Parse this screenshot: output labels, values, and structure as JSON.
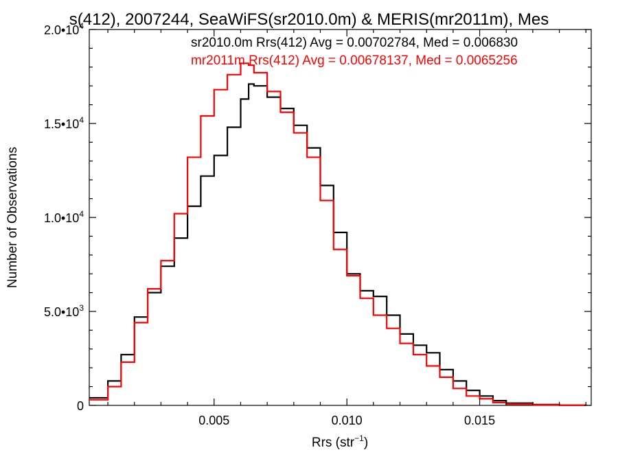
{
  "chart_data": {
    "type": "line",
    "title": "s(412), 2007244, SeaWiFS(sr2010.0m) & MERIS(mr2011m), Mes",
    "xlabel_main": "Rrs (str",
    "xlabel_sup": "−1",
    "xlabel_close": ")",
    "ylabel": "Number of Observations",
    "xlim": [
      0.0003,
      0.0192
    ],
    "ylim": [
      0,
      20000
    ],
    "x_ticks": [
      {
        "value": 0.005,
        "label": "0.005"
      },
      {
        "value": 0.01,
        "label": "0.010"
      },
      {
        "value": 0.015,
        "label": "0.015"
      }
    ],
    "y_ticks": [
      {
        "value": 0,
        "base": "0",
        "exp": ""
      },
      {
        "value": 5000,
        "base": "5.0•10",
        "exp": "3"
      },
      {
        "value": 10000,
        "base": "1.0•10",
        "exp": "4"
      },
      {
        "value": 15000,
        "base": "1.5•10",
        "exp": "4"
      },
      {
        "value": 20000,
        "base": "2.0•10",
        "exp": "4"
      }
    ],
    "grid": false,
    "legend_position": "top-right",
    "series": [
      {
        "name": "sr2010.0m Rrs(412) Avg = 0.00702784, Med = 0.006830",
        "color": "#000000",
        "x": [
          0.0003,
          0.001,
          0.0015,
          0.002,
          0.0025,
          0.003,
          0.0035,
          0.004,
          0.0045,
          0.005,
          0.0055,
          0.006,
          0.0063,
          0.0065,
          0.007,
          0.0075,
          0.008,
          0.0085,
          0.009,
          0.0095,
          0.01,
          0.0105,
          0.011,
          0.0115,
          0.012,
          0.0125,
          0.013,
          0.0135,
          0.014,
          0.0145,
          0.015,
          0.0155,
          0.016,
          0.017,
          0.018,
          0.019
        ],
        "y": [
          400,
          1300,
          2700,
          4700,
          6000,
          7400,
          8900,
          10600,
          12200,
          13300,
          14800,
          16300,
          17100,
          17000,
          16400,
          15800,
          14900,
          13700,
          11700,
          9200,
          7000,
          6100,
          5800,
          4800,
          3800,
          3200,
          2800,
          1900,
          1300,
          800,
          500,
          250,
          120,
          40,
          10,
          0
        ]
      },
      {
        "name": "mr2011m Rrs(412) Avg = 0.00678137, Med = 0.0065256",
        "color": "#ff0000",
        "x": [
          0.0003,
          0.001,
          0.0015,
          0.002,
          0.0025,
          0.003,
          0.0035,
          0.004,
          0.0045,
          0.005,
          0.0055,
          0.006,
          0.0063,
          0.0065,
          0.007,
          0.0075,
          0.008,
          0.0085,
          0.009,
          0.0095,
          0.01,
          0.0105,
          0.011,
          0.0115,
          0.012,
          0.0125,
          0.013,
          0.0135,
          0.014,
          0.0145,
          0.015,
          0.0155,
          0.016,
          0.017,
          0.018,
          0.019
        ],
        "y": [
          300,
          1000,
          2300,
          4400,
          6200,
          7700,
          10200,
          13200,
          15400,
          16800,
          17600,
          18200,
          18100,
          17700,
          16700,
          15600,
          14500,
          13200,
          10900,
          8300,
          6900,
          5700,
          4800,
          4100,
          3300,
          2700,
          2100,
          1500,
          900,
          500,
          350,
          150,
          70,
          20,
          5,
          0
        ]
      }
    ]
  }
}
